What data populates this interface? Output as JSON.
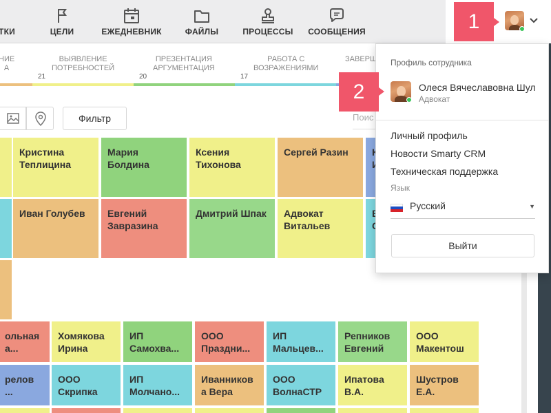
{
  "nav": {
    "items": [
      {
        "label": "ТКИ",
        "icon": "tasks-icon"
      },
      {
        "label": "ЦЕЛИ",
        "icon": "flag-icon"
      },
      {
        "label": "ЕЖЕДНЕВНИК",
        "icon": "calendar-icon"
      },
      {
        "label": "ФАЙЛЫ",
        "icon": "folder-icon"
      },
      {
        "label": "ПРОЦЕССЫ",
        "icon": "stamp-icon"
      },
      {
        "label": "СООБЩЕНИЯ",
        "icon": "chat-bubble-icon"
      }
    ]
  },
  "badges": {
    "one": "1",
    "two": "2"
  },
  "stages": [
    {
      "label1": "НИЕ",
      "label2": "А",
      "count": ""
    },
    {
      "label1": "ВЫЯВЛЕНИЕ",
      "label2": "ПОТРЕБНОСТЕЙ",
      "count": "21"
    },
    {
      "label1": "ПРЕЗЕНТАЦИЯ",
      "label2": "АРГУМЕНТАЦИЯ",
      "count": "20"
    },
    {
      "label1": "РАБОТА С",
      "label2": "ВОЗРАЖЕНИЯМИ",
      "count": "17"
    },
    {
      "label1": "ЗАВЕРШ",
      "label2": "",
      "count": ""
    }
  ],
  "toolbar": {
    "filter_label": "Фильтр",
    "search_stub": "Поис"
  },
  "cards": {
    "row1": [
      "Кристина Теплицина",
      "Мария Болдина",
      "Ксения Тихонова",
      "Сергей Разин",
      "К И"
    ],
    "row2": [
      "Иван Голубев",
      "Евгений Завразина",
      "Дмитрий Шпак",
      "Адвокат Витальев",
      "Е С"
    ],
    "row4": [
      "ольная а...",
      "Хомякова Ирина",
      "ИП Самохва...",
      "ООО Праздни...",
      "ИП Мальцев...",
      "Репников Евгений",
      "ООО Макентош"
    ],
    "row5": [
      "релов ...",
      "ООО Скрипка",
      "ИП Молчано...",
      "Иванников а Вера",
      "ООО ВолнаСТР",
      "Ипатова В.А.",
      "Шустров Е.А."
    ]
  },
  "dropdown": {
    "header": "Профиль сотрудника",
    "name": "Олеся Вячеславовна Шул",
    "role": "Адвокат",
    "links": [
      "Личный профиль",
      "Новости Smarty CRM",
      "Техническая поддержка"
    ],
    "language_label": "Язык",
    "language_value": "Русский",
    "logout_label": "Выйти"
  },
  "colors": {
    "badge": "#f0566a",
    "yellow": "#f0f08a",
    "green": "#90d37d",
    "orange": "#ecc07e",
    "red": "#ee8e7e",
    "cyan": "#7dd6de",
    "blue": "#8aa8df",
    "online": "#3cc45a"
  }
}
